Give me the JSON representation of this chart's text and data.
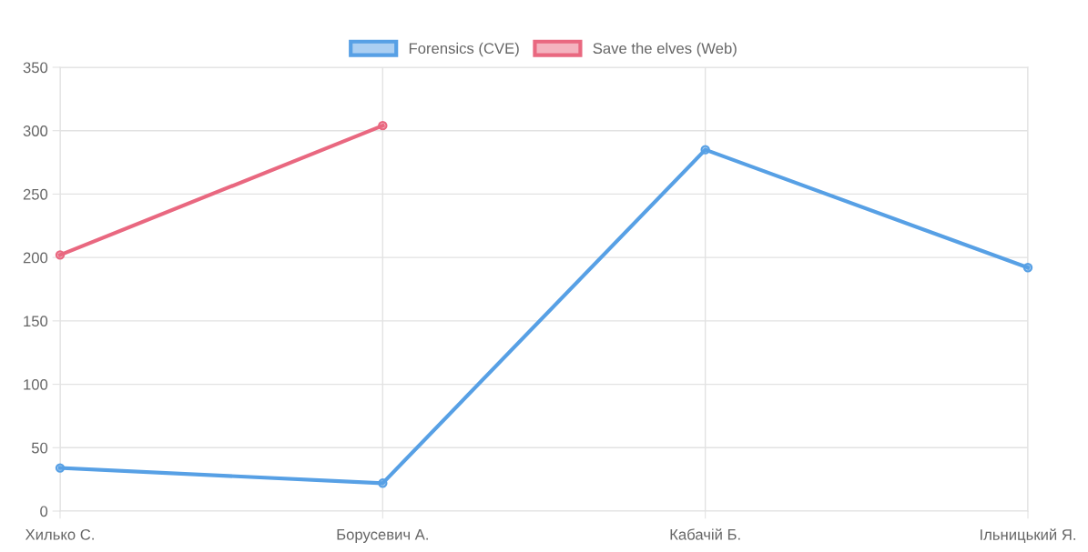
{
  "chart_data": {
    "type": "line",
    "categories": [
      "Хилько С.",
      "Борусевич А.",
      "Кабачій Б.",
      "Ільницький Я."
    ],
    "series": [
      {
        "name": "Forensics (CVE)",
        "color": "#57a0e5",
        "values": [
          34,
          22,
          285,
          192
        ]
      },
      {
        "name": "Save the elves (Web)",
        "color": "#e96880",
        "values": [
          202,
          304,
          null,
          null
        ]
      }
    ],
    "ylim": [
      0,
      350
    ],
    "yticks": [
      0,
      50,
      100,
      150,
      200,
      250,
      300,
      350
    ],
    "grid": true,
    "legend": "top",
    "marker": "circle",
    "line_style": "solid"
  }
}
